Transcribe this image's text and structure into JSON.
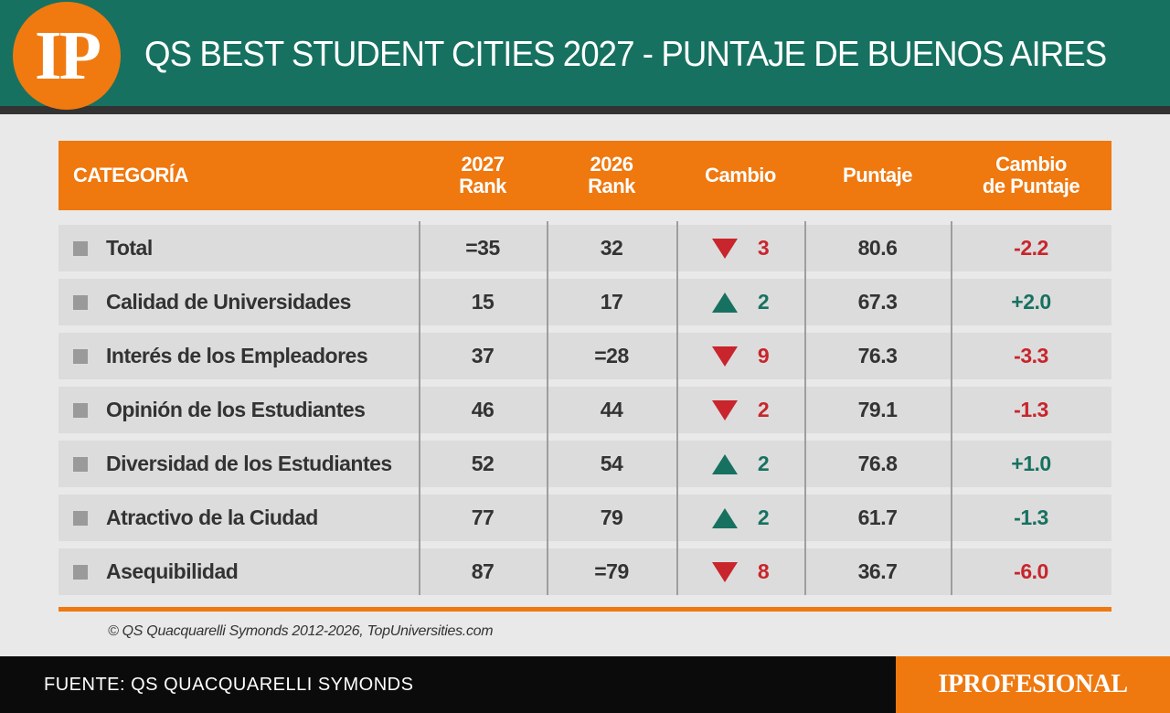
{
  "header": {
    "logo": "IP",
    "title": "QS BEST STUDENT CITIES 2027 - PUNTAJE DE BUENOS AIRES"
  },
  "columns": {
    "category": "CATEGORÍA",
    "rank2027": "2027\nRank",
    "rank2026": "2026\nRank",
    "change": "Cambio",
    "score": "Puntaje",
    "score_change": "Cambio\nde Puntaje"
  },
  "colors": {
    "down": "#c8252c",
    "up": "#177160",
    "accent": "#ef780f",
    "band": "#177160"
  },
  "rows": [
    {
      "category": "Total",
      "rank2027": "=35",
      "rank2026": "32",
      "direction": "down",
      "change": "3",
      "score": "80.6",
      "score_change": "-2.2",
      "score_change_color": "#c8252c"
    },
    {
      "category": "Calidad de Universidades",
      "rank2027": "15",
      "rank2026": "17",
      "direction": "up",
      "change": "2",
      "score": "67.3",
      "score_change": "+2.0",
      "score_change_color": "#177160"
    },
    {
      "category": "Interés de los Empleadores",
      "rank2027": "37",
      "rank2026": "=28",
      "direction": "down",
      "change": "9",
      "score": "76.3",
      "score_change": "-3.3",
      "score_change_color": "#c8252c"
    },
    {
      "category": "Opinión de los Estudiantes",
      "rank2027": "46",
      "rank2026": "44",
      "direction": "down",
      "change": "2",
      "score": "79.1",
      "score_change": "-1.3",
      "score_change_color": "#c8252c"
    },
    {
      "category": "Diversidad de los Estudiantes",
      "rank2027": "52",
      "rank2026": "54",
      "direction": "up",
      "change": "2",
      "score": "76.8",
      "score_change": "+1.0",
      "score_change_color": "#177160"
    },
    {
      "category": "Atractivo de la Ciudad",
      "rank2027": "77",
      "rank2026": "79",
      "direction": "up",
      "change": "2",
      "score": "61.7",
      "score_change": "-1.3",
      "score_change_color": "#177160"
    },
    {
      "category": "Asequibilidad",
      "rank2027": "87",
      "rank2026": "=79",
      "direction": "down",
      "change": "8",
      "score": "36.7",
      "score_change": "-6.0",
      "score_change_color": "#c8252c"
    }
  ],
  "copyright": "© QS Quacquarelli Symonds 2012-2026, TopUniversities.com",
  "footer": {
    "source": "FUENTE: QS QUACQUARELLI SYMONDS",
    "brand": "IPROFESIONAL"
  }
}
